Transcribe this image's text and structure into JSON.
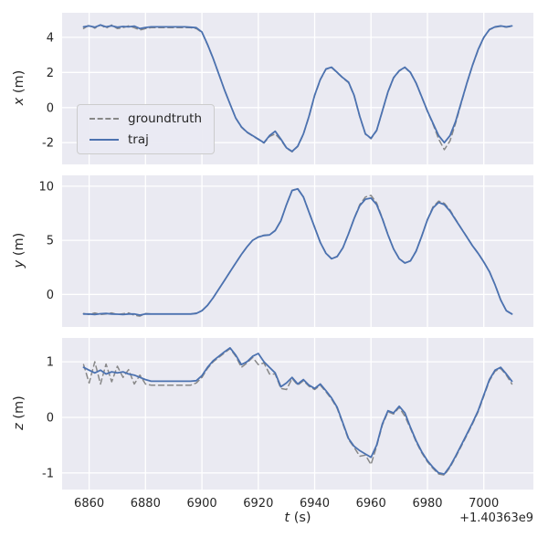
{
  "chart_data": {
    "type": "line",
    "xlabel_var": "t",
    "xlabel_unit": " (s)",
    "x_offset_label": "+1.40363e9",
    "xlim": [
      6850.4,
      7017.6
    ],
    "x_ticks": [
      6860,
      6880,
      6900,
      6920,
      6940,
      6960,
      6980,
      7000
    ],
    "x": [
      6858,
      6860,
      6862,
      6864,
      6866,
      6868,
      6870,
      6872,
      6874,
      6876,
      6878,
      6880,
      6882,
      6884,
      6886,
      6888,
      6890,
      6892,
      6894,
      6896,
      6898,
      6900,
      6902,
      6904,
      6906,
      6908,
      6910,
      6912,
      6914,
      6916,
      6918,
      6920,
      6922,
      6924,
      6926,
      6928,
      6930,
      6932,
      6934,
      6936,
      6938,
      6940,
      6942,
      6944,
      6946,
      6948,
      6950,
      6952,
      6954,
      6956,
      6958,
      6960,
      6962,
      6964,
      6966,
      6968,
      6970,
      6972,
      6974,
      6976,
      6978,
      6980,
      6982,
      6984,
      6986,
      6988,
      6990,
      6992,
      6994,
      6996,
      6998,
      7000,
      7002,
      7004,
      7006,
      7008,
      7010
    ],
    "subplots": [
      {
        "ylabel_var": "x",
        "ylabel_unit": " (m)",
        "ylim": [
          -3.24,
          5.4
        ],
        "yticks": [
          -2,
          0,
          2,
          4
        ],
        "series": [
          {
            "name": "groundtruth",
            "values": [
              4.5,
              4.7,
              4.52,
              4.72,
              4.52,
              4.7,
              4.5,
              4.55,
              4.65,
              4.55,
              4.42,
              4.5,
              4.55,
              4.55,
              4.55,
              4.55,
              4.55,
              4.55,
              4.55,
              4.55,
              4.5,
              4.28,
              3.58,
              2.78,
              1.9,
              1.0,
              0.2,
              -0.6,
              -1.12,
              -1.42,
              -1.62,
              -1.82,
              -2.02,
              -1.65,
              -1.5,
              -1.85,
              -2.32,
              -2.52,
              -2.22,
              -1.52,
              -0.52,
              0.68,
              1.58,
              2.18,
              2.28,
              1.98,
              1.68,
              1.42,
              0.68,
              -0.52,
              -1.52,
              -1.78,
              -1.32,
              -0.22,
              0.88,
              1.68,
              2.08,
              2.28,
              1.98,
              1.38,
              0.58,
              -0.22,
              -0.95,
              -1.8,
              -2.4,
              -1.9,
              -0.9,
              0.25,
              1.38,
              2.38,
              3.28,
              3.98,
              4.43,
              4.58,
              4.63,
              4.58,
              4.63
            ]
          },
          {
            "name": "traj",
            "values": [
              4.6,
              4.65,
              4.58,
              4.7,
              4.6,
              4.66,
              4.58,
              4.62,
              4.6,
              4.64,
              4.5,
              4.56,
              4.6,
              4.6,
              4.6,
              4.6,
              4.6,
              4.6,
              4.6,
              4.58,
              4.55,
              4.3,
              3.6,
              2.8,
              1.9,
              1.0,
              0.2,
              -0.6,
              -1.1,
              -1.4,
              -1.6,
              -1.8,
              -2.0,
              -1.6,
              -1.35,
              -1.8,
              -2.3,
              -2.5,
              -2.2,
              -1.5,
              -0.5,
              0.7,
              1.6,
              2.2,
              2.3,
              2.0,
              1.7,
              1.45,
              0.7,
              -0.5,
              -1.5,
              -1.75,
              -1.3,
              -0.2,
              0.9,
              1.7,
              2.1,
              2.3,
              2.0,
              1.4,
              0.6,
              -0.2,
              -0.9,
              -1.6,
              -2.0,
              -1.6,
              -0.8,
              0.3,
              1.4,
              2.4,
              3.3,
              4.0,
              4.45,
              4.6,
              4.65,
              4.6,
              4.65
            ]
          }
        ]
      },
      {
        "ylabel_var": "y",
        "ylabel_unit": " (m)",
        "ylim": [
          -3.0,
          11.0
        ],
        "yticks": [
          0,
          5,
          10
        ],
        "series": [
          {
            "name": "groundtruth",
            "values": [
              -1.75,
              -1.85,
              -1.7,
              -1.85,
              -1.8,
              -1.7,
              -1.85,
              -1.78,
              -1.7,
              -1.92,
              -2.0,
              -1.76,
              -1.8,
              -1.8,
              -1.8,
              -1.8,
              -1.8,
              -1.8,
              -1.8,
              -1.8,
              -1.72,
              -1.5,
              -1.0,
              -0.3,
              0.5,
              1.3,
              2.1,
              2.9,
              3.7,
              4.4,
              5.0,
              5.32,
              5.48,
              5.52,
              5.92,
              6.82,
              8.32,
              9.62,
              9.78,
              9.02,
              7.62,
              6.22,
              4.82,
              3.82,
              3.32,
              3.52,
              4.32,
              5.62,
              7.02,
              8.3,
              9.0,
              9.15,
              8.45,
              7.05,
              5.52,
              4.22,
              3.32,
              2.92,
              3.12,
              4.02,
              5.42,
              6.92,
              8.1,
              8.62,
              8.42,
              7.8,
              6.95,
              6.12,
              5.32,
              4.52,
              3.82,
              3.02,
              2.12,
              0.92,
              -0.48,
              -1.52,
              -1.8
            ]
          },
          {
            "name": "traj",
            "values": [
              -1.8,
              -1.8,
              -1.85,
              -1.78,
              -1.75,
              -1.8,
              -1.82,
              -1.85,
              -1.8,
              -1.8,
              -1.9,
              -1.8,
              -1.8,
              -1.8,
              -1.8,
              -1.8,
              -1.8,
              -1.8,
              -1.8,
              -1.8,
              -1.75,
              -1.5,
              -1.0,
              -0.3,
              0.5,
              1.3,
              2.1,
              2.9,
              3.7,
              4.4,
              5.0,
              5.3,
              5.45,
              5.5,
              5.9,
              6.8,
              8.3,
              9.6,
              9.75,
              9.0,
              7.6,
              6.2,
              4.8,
              3.8,
              3.3,
              3.5,
              4.3,
              5.6,
              7.0,
              8.2,
              8.8,
              8.9,
              8.3,
              7.0,
              5.5,
              4.2,
              3.3,
              2.9,
              3.1,
              4.0,
              5.4,
              6.9,
              8.0,
              8.5,
              8.3,
              7.7,
              6.9,
              6.1,
              5.3,
              4.5,
              3.8,
              3.0,
              2.1,
              0.9,
              -0.5,
              -1.5,
              -1.8
            ]
          }
        ]
      },
      {
        "ylabel_var": "z",
        "ylabel_unit": " (m)",
        "ylim": [
          -1.3,
          1.43
        ],
        "yticks": [
          -1,
          0,
          1
        ],
        "series": [
          {
            "name": "groundtruth",
            "values": [
              0.95,
              0.62,
              1.0,
              0.6,
              0.96,
              0.64,
              0.92,
              0.72,
              0.86,
              0.6,
              0.76,
              0.6,
              0.58,
              0.58,
              0.58,
              0.58,
              0.58,
              0.58,
              0.58,
              0.58,
              0.62,
              0.72,
              0.88,
              1.0,
              1.08,
              1.16,
              1.24,
              1.1,
              0.9,
              0.98,
              1.08,
              0.95,
              0.98,
              0.78,
              0.78,
              0.52,
              0.5,
              0.7,
              0.58,
              0.66,
              0.56,
              0.5,
              0.58,
              0.46,
              0.33,
              0.16,
              -0.12,
              -0.4,
              -0.54,
              -0.7,
              -0.68,
              -0.85,
              -0.52,
              -0.14,
              0.1,
              0.06,
              0.18,
              0.02,
              -0.2,
              -0.44,
              -0.64,
              -0.8,
              -0.92,
              -1.02,
              -1.04,
              -0.9,
              -0.72,
              -0.52,
              -0.32,
              -0.12,
              0.1,
              0.38,
              0.66,
              0.83,
              0.88,
              0.76,
              0.6
            ]
          },
          {
            "name": "traj",
            "values": [
              0.9,
              0.85,
              0.8,
              0.85,
              0.78,
              0.82,
              0.8,
              0.82,
              0.78,
              0.76,
              0.72,
              0.68,
              0.65,
              0.65,
              0.65,
              0.65,
              0.65,
              0.65,
              0.65,
              0.65,
              0.66,
              0.75,
              0.9,
              1.02,
              1.1,
              1.18,
              1.25,
              1.12,
              0.95,
              1.0,
              1.1,
              1.15,
              1.0,
              0.9,
              0.8,
              0.55,
              0.62,
              0.72,
              0.6,
              0.68,
              0.58,
              0.52,
              0.6,
              0.48,
              0.35,
              0.18,
              -0.1,
              -0.38,
              -0.52,
              -0.6,
              -0.66,
              -0.72,
              -0.5,
              -0.12,
              0.12,
              0.08,
              0.2,
              0.08,
              -0.18,
              -0.42,
              -0.62,
              -0.78,
              -0.9,
              -1.0,
              -1.02,
              -0.88,
              -0.7,
              -0.5,
              -0.3,
              -0.1,
              0.12,
              0.4,
              0.68,
              0.85,
              0.9,
              0.78,
              0.65
            ]
          }
        ]
      }
    ],
    "legend": {
      "position": "left of first subplot",
      "entries": [
        {
          "label": "groundtruth",
          "color": "#888888",
          "style": "dashed"
        },
        {
          "label": "traj",
          "color": "#4c72b0",
          "style": "solid"
        }
      ]
    },
    "colors": {
      "background": "#eaeaf2",
      "grid": "#ffffff",
      "traj": "#4c72b0",
      "groundtruth": "#888888",
      "tick_text": "#262626"
    }
  }
}
